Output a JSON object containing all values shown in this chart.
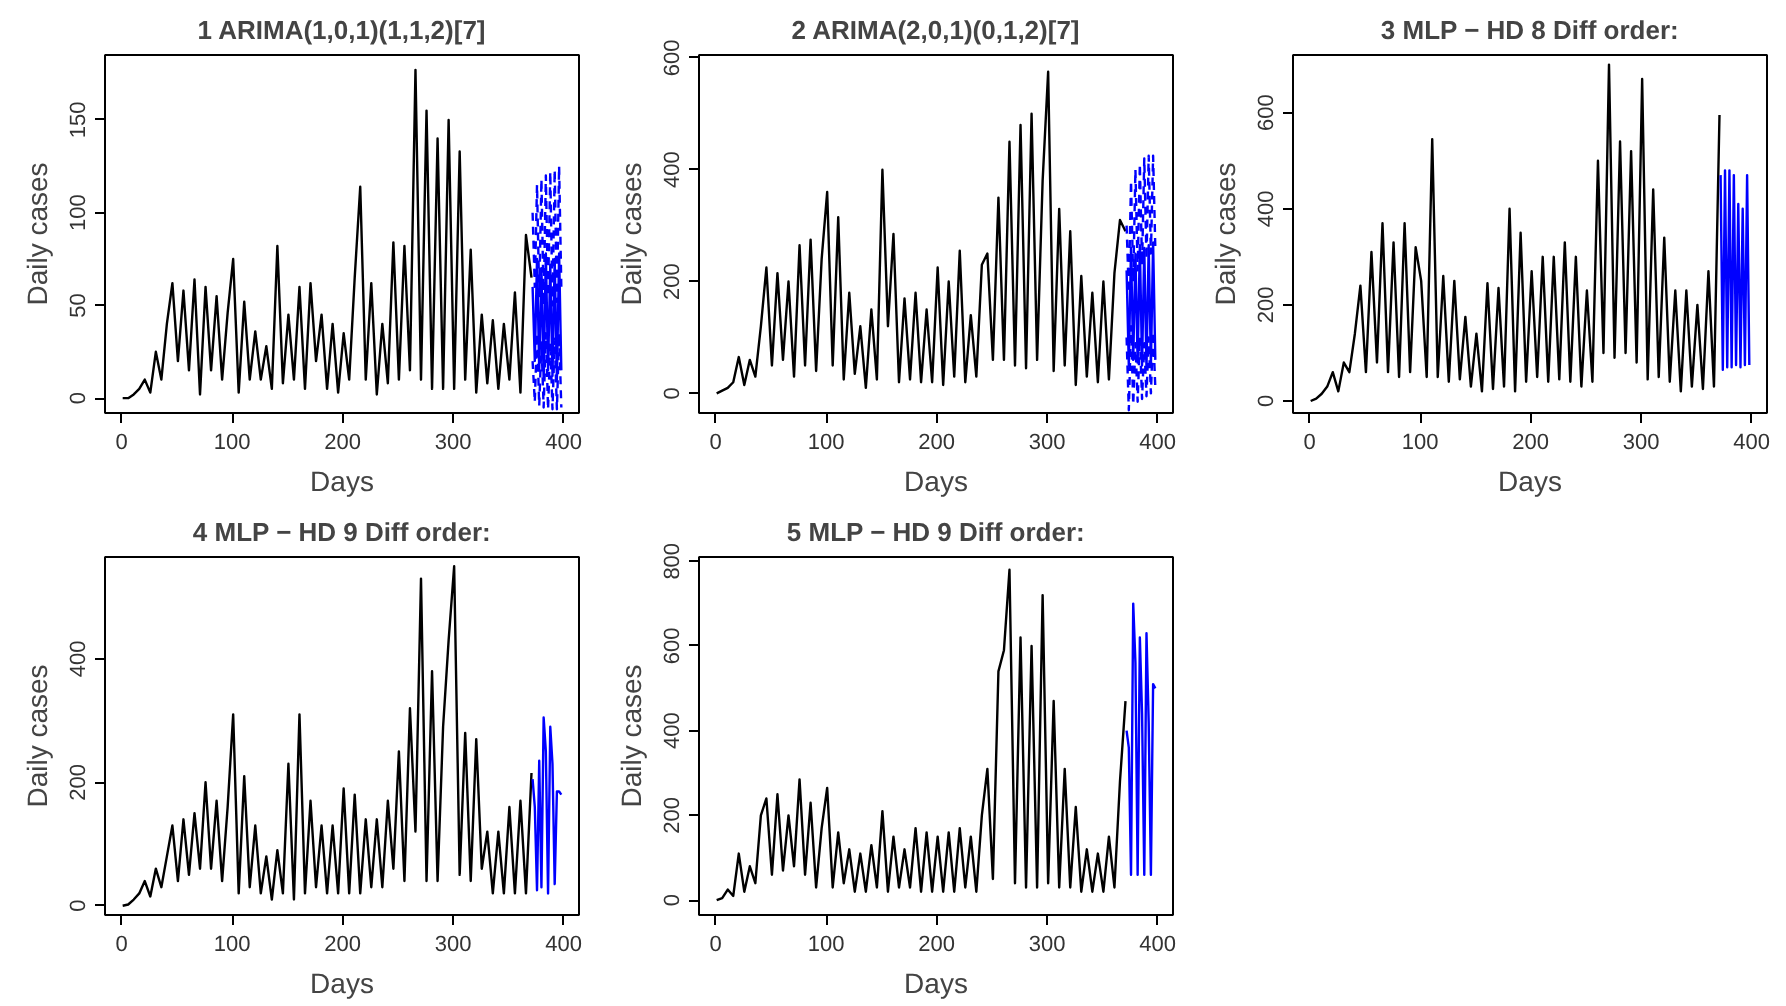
{
  "chart_data": [
    {
      "type": "line",
      "title": "1 ARIMA(1,0,1)(1,1,2)[7]",
      "xlabel": "Days",
      "ylabel": "Daily cases",
      "xlim": [
        -15,
        414
      ],
      "xticks": [
        0,
        100,
        200,
        300,
        400
      ],
      "ylim": [
        -8,
        185
      ],
      "yticks": [
        0,
        50,
        100,
        150
      ],
      "series": [
        {
          "color": "#000000",
          "x": [
            1,
            6,
            11,
            16,
            21,
            26,
            31,
            36,
            41,
            46,
            51,
            56,
            61,
            66,
            71,
            76,
            81,
            86,
            91,
            96,
            101,
            106,
            111,
            116,
            121,
            126,
            131,
            136,
            141,
            146,
            151,
            156,
            161,
            166,
            171,
            176,
            181,
            186,
            191,
            196,
            201,
            206,
            211,
            216,
            221,
            226,
            231,
            236,
            241,
            246,
            251,
            256,
            261,
            266,
            271,
            276,
            281,
            286,
            291,
            296,
            301,
            306,
            311,
            316,
            321,
            326,
            331,
            336,
            341,
            346,
            351,
            356,
            361,
            366,
            371
          ],
          "values": [
            0,
            0,
            2,
            5,
            10,
            3,
            25,
            10,
            40,
            62,
            20,
            58,
            15,
            64,
            2,
            60,
            15,
            55,
            10,
            46,
            75,
            3,
            52,
            10,
            36,
            10,
            28,
            5,
            82,
            8,
            45,
            10,
            60,
            5,
            62,
            20,
            45,
            5,
            40,
            3,
            35,
            10,
            65,
            114,
            10,
            62,
            2,
            40,
            8,
            84,
            10,
            82,
            15,
            177,
            10,
            155,
            5,
            140,
            5,
            150,
            5,
            133,
            10,
            80,
            3,
            45,
            8,
            42,
            5,
            40,
            10,
            57,
            3,
            88,
            65
          ]
        },
        {
          "color": "#0000ff",
          "x": [
            372,
            374,
            376,
            378,
            380,
            382,
            384,
            386,
            388,
            390,
            392,
            394,
            396,
            398
          ],
          "values": [
            60,
            20,
            75,
            15,
            70,
            10,
            78,
            15,
            72,
            12,
            75,
            10,
            78,
            15
          ]
        },
        {
          "color": "#0000ff",
          "line_style": "dashed",
          "x": [
            372,
            374,
            376,
            378,
            380,
            382,
            384,
            386,
            388,
            390,
            392,
            394,
            396,
            398
          ],
          "values": [
            100,
            60,
            115,
            55,
            118,
            50,
            120,
            55,
            122,
            50,
            123,
            52,
            125,
            60
          ]
        },
        {
          "color": "#0000ff",
          "line_style": "dashed",
          "x": [
            372,
            374,
            376,
            378,
            380,
            382,
            384,
            386,
            388,
            390,
            392,
            394,
            396,
            398
          ],
          "values": [
            20,
            -2,
            35,
            -4,
            30,
            -5,
            35,
            -6,
            30,
            -6,
            32,
            -6,
            35,
            -5
          ]
        }
      ]
    },
    {
      "type": "line",
      "title": "2 ARIMA(2,0,1)(0,1,2)[7]",
      "xlabel": "Days",
      "ylabel": "Daily cases",
      "xlim": [
        -15,
        414
      ],
      "xticks": [
        0,
        100,
        200,
        300,
        400
      ],
      "ylim": [
        -35,
        605
      ],
      "yticks": [
        0,
        200,
        400,
        600
      ],
      "series": [
        {
          "color": "#000000",
          "x": [
            1,
            6,
            11,
            16,
            21,
            26,
            31,
            36,
            41,
            46,
            51,
            56,
            61,
            66,
            71,
            76,
            81,
            86,
            91,
            96,
            101,
            106,
            111,
            116,
            121,
            126,
            131,
            136,
            141,
            146,
            151,
            156,
            161,
            166,
            171,
            176,
            181,
            186,
            191,
            196,
            201,
            206,
            211,
            216,
            221,
            226,
            231,
            236,
            241,
            246,
            251,
            256,
            261,
            266,
            271,
            276,
            281,
            286,
            291,
            296,
            301,
            306,
            311,
            316,
            321,
            326,
            331,
            336,
            341,
            346,
            351,
            356,
            361,
            366,
            371
          ],
          "values": [
            0,
            5,
            10,
            20,
            65,
            15,
            60,
            30,
            120,
            225,
            50,
            215,
            60,
            200,
            30,
            265,
            50,
            275,
            40,
            240,
            360,
            50,
            315,
            25,
            180,
            35,
            120,
            10,
            150,
            25,
            400,
            120,
            285,
            20,
            170,
            25,
            180,
            20,
            150,
            20,
            225,
            15,
            200,
            30,
            255,
            20,
            140,
            30,
            230,
            250,
            60,
            350,
            60,
            450,
            50,
            480,
            45,
            500,
            60,
            380,
            575,
            40,
            330,
            50,
            290,
            15,
            210,
            30,
            180,
            20,
            200,
            25,
            215,
            310,
            290
          ]
        },
        {
          "color": "#0000ff",
          "x": [
            372,
            374,
            376,
            378,
            380,
            382,
            384,
            386,
            388,
            390,
            392,
            394,
            396,
            398
          ],
          "values": [
            220,
            50,
            260,
            60,
            250,
            55,
            265,
            50,
            260,
            45,
            265,
            50,
            270,
            60
          ]
        },
        {
          "color": "#0000ff",
          "line_style": "dashed",
          "x": [
            372,
            374,
            376,
            378,
            380,
            382,
            384,
            386,
            388,
            390,
            392,
            394,
            396,
            398
          ],
          "values": [
            300,
            180,
            380,
            200,
            400,
            220,
            410,
            230,
            420,
            240,
            425,
            250,
            425,
            260
          ]
        },
        {
          "color": "#0000ff",
          "line_style": "dashed",
          "x": [
            372,
            374,
            376,
            378,
            380,
            382,
            384,
            386,
            388,
            390,
            392,
            394,
            396,
            398
          ],
          "values": [
            100,
            -30,
            120,
            -20,
            90,
            -15,
            100,
            -10,
            90,
            -5,
            100,
            0,
            110,
            10
          ]
        }
      ]
    },
    {
      "type": "line",
      "title": "3 MLP − HD 8 Diff order:",
      "xlabel": "Days",
      "ylabel": "Daily cases",
      "xlim": [
        -15,
        414
      ],
      "xticks": [
        0,
        100,
        200,
        300,
        400
      ],
      "ylim": [
        -25,
        720
      ],
      "yticks": [
        0,
        200,
        400,
        600
      ],
      "series": [
        {
          "color": "#000000",
          "x": [
            1,
            6,
            11,
            16,
            21,
            26,
            31,
            36,
            41,
            46,
            51,
            56,
            61,
            66,
            71,
            76,
            81,
            86,
            91,
            96,
            101,
            106,
            111,
            116,
            121,
            126,
            131,
            136,
            141,
            146,
            151,
            156,
            161,
            166,
            171,
            176,
            181,
            186,
            191,
            196,
            201,
            206,
            211,
            216,
            221,
            226,
            231,
            236,
            241,
            246,
            251,
            256,
            261,
            266,
            271,
            276,
            281,
            286,
            291,
            296,
            301,
            306,
            311,
            316,
            321,
            326,
            331,
            336,
            341,
            346,
            351,
            356,
            361,
            366,
            371
          ],
          "values": [
            0,
            5,
            15,
            30,
            60,
            20,
            80,
            60,
            140,
            240,
            60,
            310,
            80,
            370,
            60,
            330,
            50,
            370,
            60,
            320,
            250,
            50,
            545,
            50,
            260,
            40,
            250,
            45,
            175,
            30,
            140,
            20,
            245,
            25,
            235,
            30,
            400,
            20,
            350,
            40,
            270,
            50,
            300,
            40,
            300,
            45,
            330,
            40,
            300,
            30,
            230,
            40,
            500,
            100,
            700,
            90,
            540,
            100,
            520,
            80,
            670,
            45,
            440,
            50,
            340,
            40,
            230,
            20,
            230,
            30,
            200,
            25,
            270,
            30,
            595
          ]
        },
        {
          "color": "#0000ff",
          "x": [
            372,
            374,
            376,
            378,
            380,
            382,
            384,
            386,
            388,
            390,
            392,
            394,
            396,
            398
          ],
          "values": [
            470,
            65,
            480,
            70,
            480,
            70,
            470,
            75,
            410,
            70,
            400,
            75,
            470,
            75
          ]
        }
      ]
    },
    {
      "type": "line",
      "title": "4 MLP − HD 9 Diff order:",
      "xlabel": "Days",
      "ylabel": "Daily cases",
      "xlim": [
        -15,
        414
      ],
      "xticks": [
        0,
        100,
        200,
        300,
        400
      ],
      "ylim": [
        -15,
        565
      ],
      "yticks": [
        0,
        200,
        400
      ],
      "series": [
        {
          "color": "#000000",
          "x": [
            1,
            6,
            11,
            16,
            21,
            26,
            31,
            36,
            41,
            46,
            51,
            56,
            61,
            66,
            71,
            76,
            81,
            86,
            91,
            96,
            101,
            106,
            111,
            116,
            121,
            126,
            131,
            136,
            141,
            146,
            151,
            156,
            161,
            166,
            171,
            176,
            181,
            186,
            191,
            196,
            201,
            206,
            211,
            216,
            221,
            226,
            231,
            236,
            241,
            246,
            251,
            256,
            261,
            266,
            271,
            276,
            281,
            286,
            291,
            296,
            301,
            306,
            311,
            316,
            321,
            326,
            331,
            336,
            341,
            346,
            351,
            356,
            361,
            366,
            371
          ],
          "values": [
            0,
            2,
            10,
            20,
            40,
            15,
            60,
            30,
            80,
            130,
            40,
            140,
            50,
            150,
            60,
            200,
            60,
            170,
            40,
            160,
            310,
            20,
            210,
            30,
            130,
            20,
            80,
            10,
            90,
            20,
            230,
            10,
            310,
            20,
            170,
            30,
            130,
            20,
            130,
            20,
            190,
            20,
            180,
            20,
            140,
            30,
            140,
            30,
            170,
            60,
            250,
            40,
            320,
            120,
            530,
            40,
            380,
            40,
            290,
            430,
            550,
            50,
            280,
            40,
            270,
            60,
            120,
            20,
            120,
            20,
            160,
            20,
            170,
            20,
            215
          ]
        },
        {
          "color": "#0000ff",
          "x": [
            372,
            374,
            376,
            378,
            380,
            382,
            384,
            386,
            388,
            390,
            392,
            394,
            396,
            398
          ],
          "values": [
            205,
            160,
            25,
            235,
            30,
            305,
            250,
            20,
            290,
            230,
            35,
            185,
            185,
            180
          ]
        }
      ]
    },
    {
      "type": "line",
      "title": "5 MLP − HD 9 Diff order:",
      "xlabel": "Days",
      "ylabel": "Daily cases",
      "xlim": [
        -15,
        414
      ],
      "xticks": [
        0,
        100,
        200,
        300,
        400
      ],
      "ylim": [
        -35,
        810
      ],
      "yticks": [
        0,
        200,
        400,
        600,
        800
      ],
      "series": [
        {
          "color": "#000000",
          "x": [
            1,
            6,
            11,
            16,
            21,
            26,
            31,
            36,
            41,
            46,
            51,
            56,
            61,
            66,
            71,
            76,
            81,
            86,
            91,
            96,
            101,
            106,
            111,
            116,
            121,
            126,
            131,
            136,
            141,
            146,
            151,
            156,
            161,
            166,
            171,
            176,
            181,
            186,
            191,
            196,
            201,
            206,
            211,
            216,
            221,
            226,
            231,
            236,
            241,
            246,
            251,
            256,
            261,
            266,
            271,
            276,
            281,
            286,
            291,
            296,
            301,
            306,
            311,
            316,
            321,
            326,
            331,
            336,
            341,
            346,
            351,
            356,
            361,
            366,
            371
          ],
          "values": [
            0,
            5,
            25,
            10,
            110,
            20,
            80,
            40,
            200,
            240,
            60,
            250,
            70,
            200,
            80,
            285,
            60,
            230,
            30,
            170,
            265,
            30,
            160,
            40,
            120,
            20,
            110,
            20,
            130,
            30,
            210,
            20,
            150,
            30,
            120,
            30,
            170,
            20,
            160,
            20,
            150,
            20,
            160,
            20,
            170,
            30,
            150,
            20,
            200,
            310,
            50,
            540,
            590,
            780,
            40,
            620,
            30,
            600,
            30,
            720,
            40,
            470,
            30,
            310,
            30,
            220,
            20,
            120,
            20,
            110,
            20,
            150,
            30,
            280,
            470
          ]
        },
        {
          "color": "#0000ff",
          "x": [
            372,
            374,
            376,
            378,
            380,
            382,
            384,
            386,
            388,
            390,
            392,
            394,
            396,
            398
          ],
          "values": [
            400,
            360,
            60,
            700,
            560,
            60,
            620,
            440,
            60,
            630,
            420,
            60,
            510,
            500
          ]
        }
      ]
    }
  ]
}
